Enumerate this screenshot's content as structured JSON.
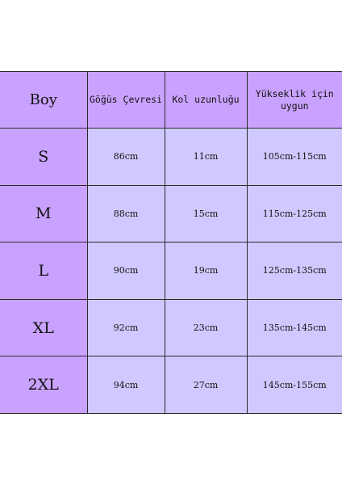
{
  "header": {
    "size": "Boy",
    "chest": "Göğüs Çevresi",
    "sleeve": "Kol uzunluğu",
    "height": "Yükseklik için uygun"
  },
  "rows": [
    {
      "size": "S",
      "chest": "86cm",
      "sleeve": "11cm",
      "height": "105cm-115cm"
    },
    {
      "size": "M",
      "chest": "88cm",
      "sleeve": "15cm",
      "height": "115cm-125cm"
    },
    {
      "size": "L",
      "chest": "90cm",
      "sleeve": "19cm",
      "height": "125cm-135cm"
    },
    {
      "size": "XL",
      "chest": "92cm",
      "sleeve": "23cm",
      "height": "135cm-145cm"
    },
    {
      "size": "2XL",
      "chest": "94cm",
      "sleeve": "27cm",
      "height": "145cm-155cm"
    }
  ],
  "colors": {
    "header_bg": "#c9a2ff",
    "value_bg": "#cfc9ff",
    "border": "#2b2b2b"
  }
}
